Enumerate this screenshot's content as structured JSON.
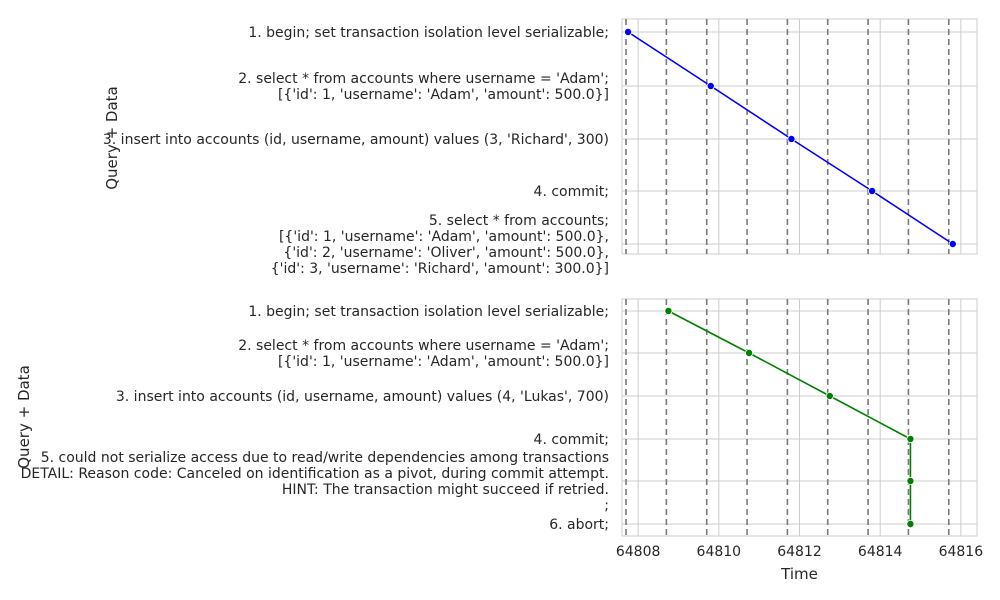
{
  "chart_data": [
    {
      "type": "line",
      "ylabel": "Query + Data",
      "xlabel": "",
      "color": "#0000ff",
      "xlim": [
        64807.6,
        64816.4
      ],
      "vlines": [
        64807.7,
        64808.7,
        64809.7,
        64810.7,
        64811.7,
        64812.7,
        64813.7,
        64814.7,
        64815.7
      ],
      "x_ticks": [],
      "y_labels": [
        [
          "1. begin; set transaction isolation level serializable;"
        ],
        [
          "2. select * from accounts where username = 'Adam';",
          "[{'id': 1, 'username': 'Adam', 'amount': 500.0}]"
        ],
        [
          "3. insert into accounts (id, username, amount) values (3, 'Richard', 300)"
        ],
        [
          "4. commit;"
        ],
        [
          "5. select * from accounts;",
          "[{'id': 1, 'username': 'Adam', 'amount': 500.0},",
          " {'id': 2, 'username': 'Oliver', 'amount': 500.0},",
          " {'id': 3, 'username': 'Richard', 'amount': 300.0}]"
        ]
      ],
      "points": [
        {
          "x": 64807.75,
          "y": 0
        },
        {
          "x": 64809.8,
          "y": 1
        },
        {
          "x": 64811.8,
          "y": 2
        },
        {
          "x": 64813.8,
          "y": 3
        },
        {
          "x": 64815.8,
          "y": 4
        }
      ]
    },
    {
      "type": "line",
      "ylabel": "Query + Data",
      "xlabel": "Time",
      "color": "#008000",
      "xlim": [
        64807.6,
        64816.4
      ],
      "vlines": [
        64807.7,
        64808.7,
        64809.7,
        64810.7,
        64811.7,
        64812.7,
        64813.7,
        64814.7,
        64815.7
      ],
      "x_ticks": [
        "64808",
        "64810",
        "64812",
        "64814",
        "64816"
      ],
      "y_labels": [
        [
          "1. begin; set transaction isolation level serializable;"
        ],
        [
          "2. select * from accounts where username = 'Adam';",
          "[{'id': 1, 'username': 'Adam', 'amount': 500.0}]"
        ],
        [
          "3. insert into accounts (id, username, amount) values (4, 'Lukas', 700)"
        ],
        [
          "4. commit;"
        ],
        [
          "5. could not serialize access due to read/write dependencies among transactions",
          "DETAIL:  Reason code: Canceled on identification as a pivot, during commit attempt.",
          "HINT:  The transaction might succeed if retried.",
          ";"
        ],
        [
          "6. abort;"
        ]
      ],
      "points": [
        {
          "x": 64808.75,
          "y": 0
        },
        {
          "x": 64810.75,
          "y": 1
        },
        {
          "x": 64812.75,
          "y": 2
        },
        {
          "x": 64814.75,
          "y": 3
        },
        {
          "x": 64814.75,
          "y": 4
        },
        {
          "x": 64814.75,
          "y": 5
        }
      ]
    }
  ]
}
